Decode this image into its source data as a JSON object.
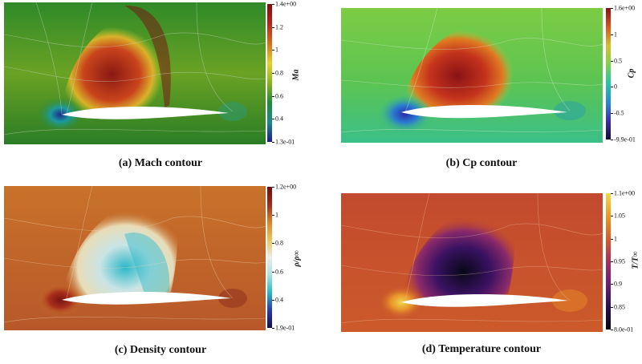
{
  "panels": [
    {
      "id": "mach",
      "caption": "(a) Mach contour",
      "colorbar_label": "Ma",
      "ticks": [
        "1.4e+00",
        "1.2",
        "1",
        "0.8",
        "0.6",
        "0.4",
        "1.3e-01"
      ],
      "colors": [
        "#1e1a8a",
        "#1c8a8a",
        "#1f8a3a",
        "#8ab31c",
        "#e5d22a",
        "#d2701c",
        "#b5241a",
        "#7a0f10"
      ]
    },
    {
      "id": "cp",
      "caption": "(b) Cp contour",
      "colorbar_label": "Cp",
      "ticks": [
        "1.6e+00",
        "1",
        "0.5",
        "0",
        "-0.5",
        "-9.9e-01"
      ],
      "colors": [
        "#140a3a",
        "#3b2fb0",
        "#2a8ad5",
        "#22c7a6",
        "#7fd14a",
        "#d6c02a",
        "#d8551c",
        "#8a0f14"
      ]
    },
    {
      "id": "density",
      "caption": "(c) Density contour",
      "colorbar_label": "ρ/ρ∞",
      "ticks": [
        "1.2e+00",
        "1",
        "0.8",
        "0.6",
        "0.4",
        "1.9e-01"
      ],
      "colors": [
        "#10104a",
        "#2a3aa8",
        "#2ab8c4",
        "#a8e4e0",
        "#ececec",
        "#e8c45a",
        "#d8842a",
        "#a02a1a",
        "#6a0e0e"
      ]
    },
    {
      "id": "temperature",
      "caption": "(d) Temperature contour",
      "colorbar_label": "T/T∞",
      "ticks": [
        "1.1e+00",
        "1.05",
        "1",
        "0.95",
        "0.9",
        "0.85",
        "8.0e-01"
      ],
      "colors": [
        "#050510",
        "#2a0f52",
        "#6a1e7a",
        "#a8305c",
        "#d85a2a",
        "#ee9a20",
        "#f3d84a"
      ]
    }
  ]
}
